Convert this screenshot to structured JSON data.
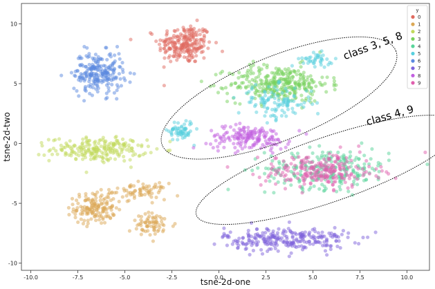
{
  "chart_data": {
    "type": "scatter",
    "xlabel": "tsne-2d-one",
    "ylabel": "tsne-2d-two",
    "xlim": [
      -10.5,
      11.2
    ],
    "ylim": [
      -10.6,
      11.7
    ],
    "xticks": [
      -10.0,
      -7.5,
      -5.0,
      -2.5,
      0.0,
      2.5,
      5.0,
      7.5,
      10.0
    ],
    "xtick_labels": [
      "-10.0",
      "-7.5",
      "-5.0",
      "-2.5",
      "0.0",
      "2.5",
      "5.0",
      "7.5",
      "10.0"
    ],
    "yticks": [
      -10,
      -5,
      0,
      5,
      10
    ],
    "ytick_labels": [
      "-10",
      "-5",
      "0",
      "5",
      "10"
    ],
    "grid": false,
    "legend": {
      "title": "y",
      "placement": "top-right",
      "entries": [
        {
          "label": "0",
          "color": "#e06a5f"
        },
        {
          "label": "1",
          "color": "#dba856"
        },
        {
          "label": "2",
          "color": "#c1d95c"
        },
        {
          "label": "3",
          "color": "#78d15d"
        },
        {
          "label": "4",
          "color": "#58d49a"
        },
        {
          "label": "5",
          "color": "#58d0de"
        },
        {
          "label": "6",
          "color": "#5b8ae0"
        },
        {
          "label": "7",
          "color": "#7f64dc"
        },
        {
          "label": "8",
          "color": "#c25fe0"
        },
        {
          "label": "9",
          "color": "#e05fae"
        }
      ]
    },
    "series": [
      {
        "name": "0",
        "color": "#e06a5f",
        "clusters": [
          {
            "cx": -1.8,
            "cy": 8.3,
            "sx": 1.3,
            "sy": 1.5,
            "n": 230
          }
        ]
      },
      {
        "name": "1",
        "color": "#dba856",
        "clusters": [
          {
            "cx": -6.6,
            "cy": -5.4,
            "sx": 1.0,
            "sy": 1.2,
            "n": 150
          },
          {
            "cx": -4.2,
            "cy": -4.0,
            "sx": 1.3,
            "sy": 0.6,
            "n": 70
          },
          {
            "cx": -3.5,
            "cy": -6.8,
            "sx": 1.1,
            "sy": 0.9,
            "n": 70
          }
        ]
      },
      {
        "name": "2",
        "color": "#c1d95c",
        "clusters": [
          {
            "cx": -6.4,
            "cy": -0.5,
            "sx": 2.3,
            "sy": 0.9,
            "n": 220
          }
        ]
      },
      {
        "name": "3",
        "color": "#78d15d",
        "clusters": [
          {
            "cx": 3.2,
            "cy": 5.0,
            "sx": 2.4,
            "sy": 1.4,
            "n": 320
          }
        ]
      },
      {
        "name": "4",
        "color": "#58d49a",
        "clusters": [
          {
            "cx": 5.8,
            "cy": -2.1,
            "sx": 3.0,
            "sy": 1.5,
            "n": 250
          }
        ]
      },
      {
        "name": "5",
        "color": "#58d0de",
        "clusters": [
          {
            "cx": 3.0,
            "cy": 3.4,
            "sx": 1.8,
            "sy": 1.3,
            "n": 110
          },
          {
            "cx": -2.0,
            "cy": 1.1,
            "sx": 0.6,
            "sy": 0.8,
            "n": 60
          },
          {
            "cx": 5.2,
            "cy": 7.0,
            "sx": 0.8,
            "sy": 0.5,
            "n": 40
          }
        ]
      },
      {
        "name": "6",
        "color": "#5b8ae0",
        "clusters": [
          {
            "cx": -6.4,
            "cy": 5.9,
            "sx": 1.2,
            "sy": 1.6,
            "n": 230
          }
        ]
      },
      {
        "name": "7",
        "color": "#7f64dc",
        "clusters": [
          {
            "cx": 3.6,
            "cy": -8.0,
            "sx": 3.0,
            "sy": 0.9,
            "n": 260
          }
        ]
      },
      {
        "name": "8",
        "color": "#c25fe0",
        "clusters": [
          {
            "cx": 1.6,
            "cy": 0.5,
            "sx": 2.0,
            "sy": 0.9,
            "n": 170
          }
        ]
      },
      {
        "name": "9",
        "color": "#e05fae",
        "clusters": [
          {
            "cx": 5.4,
            "cy": -2.3,
            "sx": 2.8,
            "sy": 1.3,
            "n": 230
          }
        ]
      }
    ],
    "annotations": [
      {
        "text": "class 3, 5, 8",
        "x": 6.7,
        "y": 7.0,
        "angle": -20
      },
      {
        "text": "class 4, 9",
        "x": 7.9,
        "y": 1.5,
        "angle": -16
      }
    ],
    "highlight_ellipses": [
      {
        "label": "class 3, 5, 8",
        "cx": 3.2,
        "cy": 3.8,
        "rx": 6.7,
        "ry": 3.5,
        "angle_deg": -22
      },
      {
        "label": "class 4, 9",
        "cx": 5.8,
        "cy": -2.2,
        "rx": 7.4,
        "ry": 2.7,
        "angle_deg": -19
      }
    ]
  }
}
